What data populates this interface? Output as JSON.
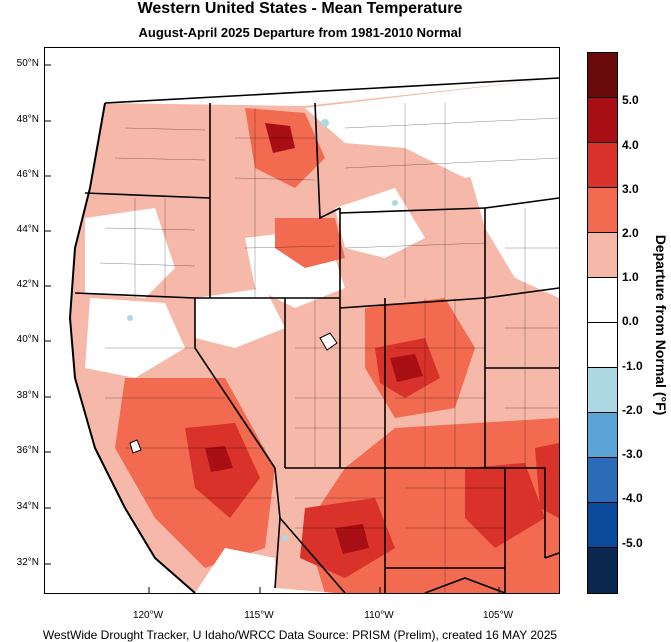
{
  "title": "Western United States - Mean Temperature",
  "subtitle": "August-April 2025  Departure from 1981-2010 Normal",
  "footer": "WestWide Drought Tracker, U Idaho/WRCC Data Source: PRISM (Prelim), created 16 MAY 2025",
  "map": {
    "lat_labels": [
      "50°N",
      "48°N",
      "46°N",
      "44°N",
      "42°N",
      "40°N",
      "38°N",
      "36°N",
      "34°N",
      "32°N"
    ],
    "lon_labels": [
      "120°W",
      "115°W",
      "110°W",
      "105°W"
    ],
    "colors": {
      "dark_red": "#a80f14",
      "red": "#d8322a",
      "orange_red": "#f26a4f",
      "salmon": "#f6b8a8",
      "white": "#ffffff",
      "light_blue": "#aed8e3",
      "state_border": "#000000"
    }
  },
  "legend": {
    "title": "Departure from Normal (°F)",
    "labels": [
      "5.0",
      "4.0",
      "3.0",
      "2.0",
      "1.0",
      "0.0",
      "-1.0",
      "-2.0",
      "-3.0",
      "-4.0",
      "-5.0"
    ],
    "colors": [
      "#6b0a0d",
      "#a80f14",
      "#d8322a",
      "#f26a4f",
      "#f6b8a8",
      "#ffffff",
      "#ffffff",
      "#aed8e3",
      "#5ba4d6",
      "#2b6cb8",
      "#0b4a9a",
      "#0b2850"
    ]
  }
}
